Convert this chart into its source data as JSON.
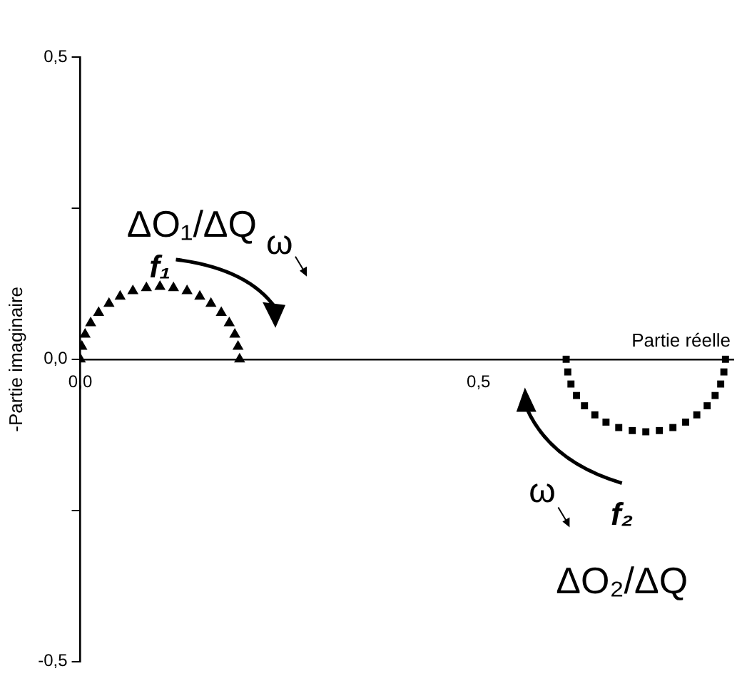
{
  "chart_data": {
    "type": "scatter",
    "xlabel": "Partie réelle",
    "ylabel": "-Partie imaginaire",
    "xlim": [
      0,
      0.82
    ],
    "ylim": [
      -0.5,
      0.5
    ],
    "xticks": [
      {
        "value": 0,
        "label": "0,0"
      },
      {
        "value": 0.5,
        "label": "0,5"
      }
    ],
    "yticks": [
      {
        "value": -0.5,
        "label": "-0,5"
      },
      {
        "value": -0.25,
        "label": null
      },
      {
        "value": 0,
        "label": "0,0"
      },
      {
        "value": 0.25,
        "label": null
      },
      {
        "value": 0.5,
        "label": "0,5"
      }
    ],
    "grid": false,
    "legend": false,
    "series": [
      {
        "color": "#000000",
        "marker": "triangle",
        "x": [
          0,
          0.002,
          0.006,
          0.013,
          0.023,
          0.036,
          0.05,
          0.066,
          0.083,
          0.1,
          0.117,
          0.134,
          0.15,
          0.164,
          0.177,
          0.187,
          0.194,
          0.198,
          0.2
        ],
        "values": [
          0,
          0.021,
          0.041,
          0.06,
          0.077,
          0.092,
          0.104,
          0.113,
          0.118,
          0.12,
          0.118,
          0.113,
          0.104,
          0.092,
          0.077,
          0.06,
          0.041,
          0.021,
          0
        ]
      },
      {
        "color": "#000000",
        "marker": "square",
        "x": [
          0.61,
          0.612,
          0.616,
          0.623,
          0.633,
          0.646,
          0.66,
          0.676,
          0.693,
          0.71,
          0.727,
          0.744,
          0.76,
          0.774,
          0.787,
          0.797,
          0.804,
          0.808,
          0.81
        ],
        "values": [
          0,
          -0.021,
          -0.041,
          -0.06,
          -0.077,
          -0.092,
          -0.104,
          -0.113,
          -0.118,
          -0.12,
          -0.118,
          -0.113,
          -0.104,
          -0.092,
          -0.077,
          -0.06,
          -0.041,
          -0.021,
          0
        ]
      }
    ],
    "annotations": [
      "ΔO₁/ΔQ",
      "f₁",
      "ω",
      "ω",
      "f₂",
      "ΔO₂/ΔQ"
    ]
  }
}
